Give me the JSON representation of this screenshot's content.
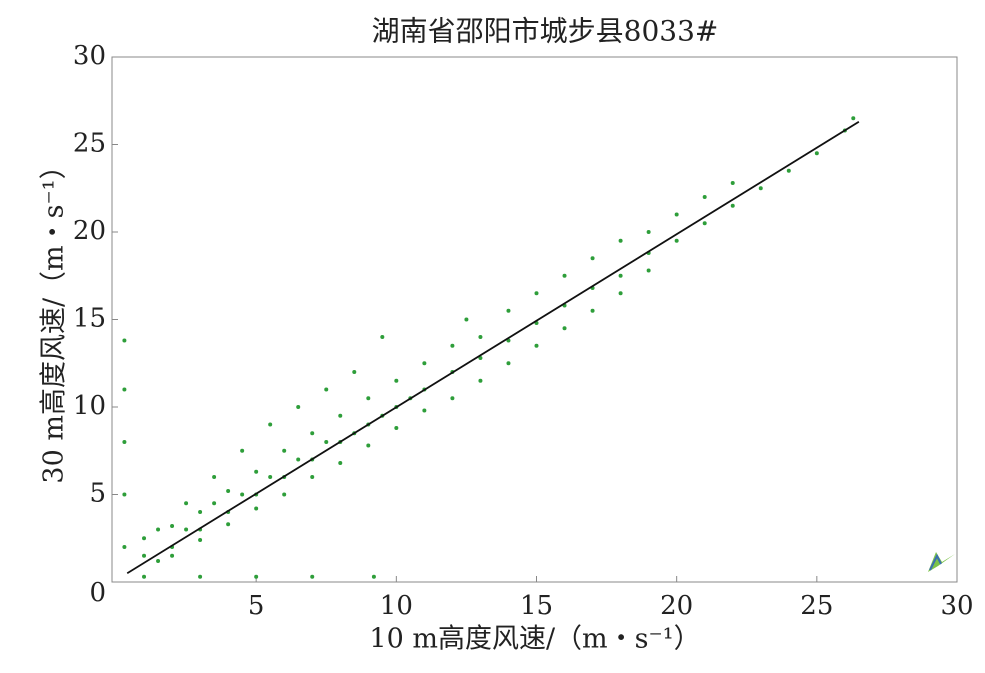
{
  "chart_data": {
    "type": "scatter",
    "title": "湖南省邵阳市城步县8033#",
    "xlabel": "10 m高度风速/（m・s⁻¹）",
    "ylabel": "30 m高度风速/（m・s⁻¹）",
    "color": "#2e9e3a",
    "x": [
      0.3,
      0.3,
      0.3,
      0.3,
      0.3,
      1,
      3,
      5,
      7,
      9.2,
      1,
      1,
      1.5,
      1.5,
      2,
      2,
      2,
      2.5,
      2.5,
      3,
      3,
      3,
      3.5,
      3.5,
      4,
      4,
      4,
      4.5,
      4.5,
      5,
      5,
      5,
      5.5,
      5.5,
      6,
      6,
      6,
      6.5,
      6.5,
      7,
      7,
      7,
      7.5,
      7.5,
      8,
      8,
      8,
      8.5,
      8.5,
      9,
      9,
      9,
      9.5,
      9.5,
      10,
      10,
      10,
      10.5,
      11,
      11,
      11,
      12,
      12,
      12,
      12.5,
      13,
      13,
      13,
      14,
      14,
      14,
      15,
      15,
      15,
      16,
      16,
      16,
      17,
      17,
      17,
      18,
      18,
      18,
      19,
      19,
      19,
      20,
      20,
      21,
      21,
      22,
      22,
      23,
      24,
      25,
      26,
      26.3
    ],
    "values": [
      2,
      5,
      8,
      11,
      13.8,
      0.3,
      0.3,
      0.3,
      0.3,
      0.3,
      1.5,
      2.5,
      1.2,
      3,
      2,
      3.2,
      1.5,
      3,
      4.5,
      3,
      4,
      2.4,
      4.5,
      6,
      4,
      5.2,
      3.3,
      5,
      7.5,
      5,
      6.3,
      4.2,
      6,
      9,
      6,
      7.5,
      5,
      7,
      10,
      7,
      8.5,
      6,
      8,
      11,
      8,
      9.5,
      6.8,
      8.5,
      12,
      9,
      10.5,
      7.8,
      9.5,
      14,
      10,
      11.5,
      8.8,
      10.5,
      11,
      12.5,
      9.8,
      12,
      13.5,
      10.5,
      15,
      12.8,
      14,
      11.5,
      13.8,
      15.5,
      12.5,
      14.8,
      16.5,
      13.5,
      15.8,
      17.5,
      14.5,
      16.8,
      18.5,
      15.5,
      17.5,
      19.5,
      16.5,
      18.8,
      20,
      17.8,
      19.5,
      21,
      20.5,
      22,
      21.5,
      22.8,
      22.5,
      23.5,
      24.5,
      25.8,
      26.5
    ],
    "fit_line": {
      "x": [
        0.4,
        26.5
      ],
      "values": [
        0.5,
        26.3
      ],
      "color": "#111111"
    },
    "xlim": [
      0,
      30
    ],
    "ylim": [
      0,
      30
    ],
    "xticks": [
      5,
      10,
      15,
      20,
      25,
      30
    ],
    "yticks": [
      0,
      5,
      10,
      15,
      20,
      25,
      30
    ]
  }
}
